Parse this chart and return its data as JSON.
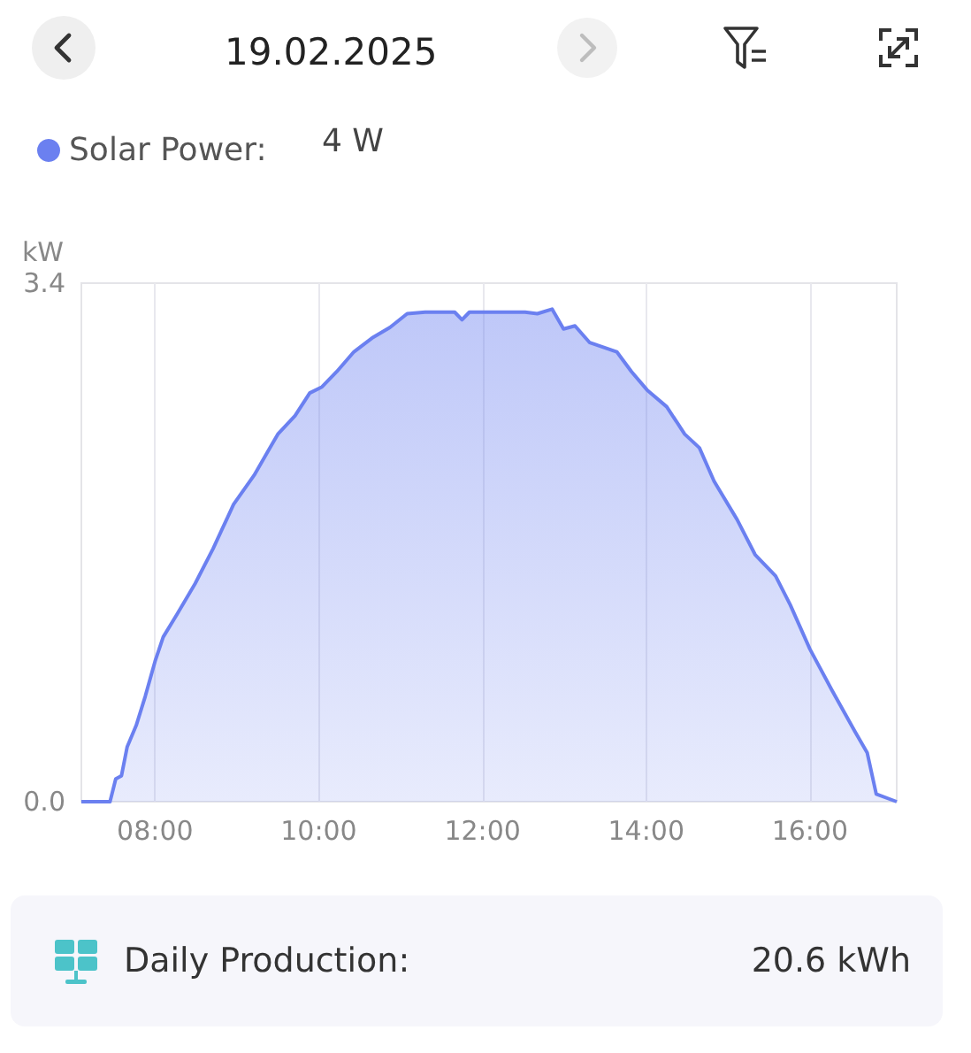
{
  "chart_data": {
    "type": "area",
    "title": "19.02.2025",
    "ylabel": "kW",
    "annotations": [
      "4 W",
      "Daily Production:",
      "20.6 kWh"
    ],
    "x": [
      7.1,
      7.45,
      7.52,
      7.59,
      7.66,
      7.77,
      7.88,
      8.0,
      8.1,
      8.27,
      8.49,
      8.71,
      8.96,
      9.21,
      9.5,
      9.71,
      9.89,
      10.04,
      10.22,
      10.43,
      10.65,
      10.87,
      11.08,
      11.3,
      11.66,
      11.75,
      11.84,
      12.16,
      12.52,
      12.67,
      12.85,
      12.99,
      13.13,
      13.31,
      13.64,
      13.82,
      14.01,
      14.25,
      14.47,
      14.65,
      14.83,
      15.11,
      15.33,
      15.58,
      15.76,
      16.0,
      16.27,
      16.55,
      16.7,
      16.81,
      17.06
    ],
    "series": [
      {
        "name": "Solar Power:",
        "color": "#6b80f0",
        "values": [
          0,
          0,
          0.15,
          0.17,
          0.36,
          0.5,
          0.69,
          0.92,
          1.08,
          1.23,
          1.43,
          1.66,
          1.95,
          2.14,
          2.41,
          2.53,
          2.68,
          2.72,
          2.82,
          2.95,
          3.04,
          3.11,
          3.2,
          3.21,
          3.21,
          3.16,
          3.21,
          3.21,
          3.21,
          3.2,
          3.23,
          3.1,
          3.12,
          3.01,
          2.95,
          2.82,
          2.7,
          2.59,
          2.41,
          2.32,
          2.1,
          1.85,
          1.62,
          1.48,
          1.29,
          1.0,
          0.73,
          0.46,
          0.32,
          0.05,
          0.0
        ]
      }
    ],
    "xlim": [
      7.1,
      17.06
    ],
    "xticks": [
      {
        "value": 8,
        "label": "08:00"
      },
      {
        "value": 10,
        "label": "10:00"
      },
      {
        "value": 12,
        "label": "12:00"
      },
      {
        "value": 14,
        "label": "14:00"
      },
      {
        "value": 16,
        "label": "16:00"
      }
    ],
    "ylim": [
      0,
      3.4
    ],
    "yticks": [
      {
        "value": 0,
        "label": "0.0"
      },
      {
        "value": 3.4,
        "label": "3.4"
      }
    ],
    "grid": "x",
    "legend": "top left",
    "marker": "none"
  }
}
